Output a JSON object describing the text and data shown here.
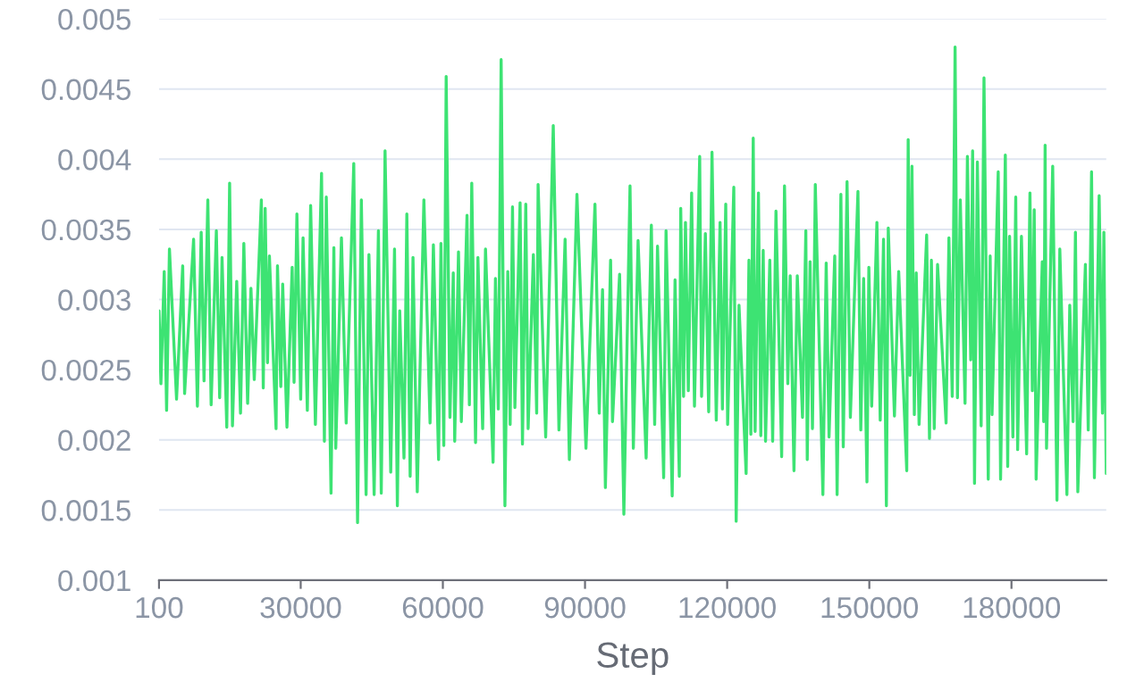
{
  "chart_data": {
    "type": "line",
    "xlabel": "Step",
    "x": [
      100,
      500,
      1200,
      1700,
      2300,
      3800,
      5100,
      5500,
      7400,
      8200,
      9000,
      9600,
      10400,
      11100,
      12200,
      12900,
      13400,
      14400,
      15000,
      15600,
      16500,
      17300,
      18000,
      18800,
      19500,
      20200,
      21700,
      22100,
      22500,
      23000,
      23400,
      24800,
      25100,
      25800,
      26200,
      27100,
      28200,
      28600,
      29200,
      30000,
      30500,
      31400,
      32100,
      33100,
      34400,
      35000,
      35400,
      36400,
      37000,
      37400,
      38600,
      39600,
      41200,
      42000,
      42800,
      43800,
      44400,
      45500,
      46400,
      47000,
      47800,
      49000,
      49800,
      50400,
      50900,
      51800,
      52400,
      53100,
      53700,
      54600,
      56000,
      57300,
      58000,
      59100,
      59600,
      60200,
      60700,
      61500,
      62200,
      62500,
      63300,
      63900,
      65100,
      65600,
      66100,
      66900,
      67400,
      68400,
      69000,
      70600,
      71100,
      71700,
      72300,
      73100,
      73700,
      74200,
      74700,
      75200,
      76300,
      76800,
      77500,
      78000,
      79100,
      79800,
      80100,
      81700,
      83300,
      84500,
      85800,
      86700,
      88300,
      90200,
      92100,
      93000,
      93700,
      94300,
      95400,
      95800,
      97300,
      98200,
      99500,
      100200,
      101200,
      102900,
      104000,
      104700,
      105300,
      106600,
      107100,
      108400,
      109000,
      109900,
      110200,
      110800,
      111200,
      111800,
      112500,
      113100,
      114200,
      114600,
      115400,
      116100,
      116800,
      117700,
      118500,
      119000,
      119700,
      120100,
      121400,
      121900,
      122500,
      124000,
      124600,
      125000,
      125500,
      125900,
      126600,
      127100,
      127600,
      128100,
      129000,
      129600,
      130300,
      131500,
      132100,
      132800,
      133300,
      134100,
      134800,
      135900,
      136600,
      136900,
      137500,
      138000,
      138600,
      140200,
      140900,
      141500,
      142700,
      143200,
      144000,
      144500,
      145300,
      146000,
      147600,
      148200,
      148800,
      149500,
      149900,
      150500,
      151600,
      152300,
      153000,
      153600,
      154000,
      155300,
      156200,
      157900,
      158200,
      158600,
      159000,
      159500,
      159900,
      160500,
      162100,
      162700,
      163100,
      163700,
      164400,
      166200,
      166800,
      167500,
      168100,
      168600,
      169200,
      170200,
      170700,
      171400,
      171800,
      172200,
      172800,
      173600,
      174200,
      175100,
      175500,
      175900,
      177200,
      177700,
      178700,
      179200,
      179600,
      180300,
      180900,
      181300,
      182100,
      183200,
      183900,
      184400,
      184800,
      185200,
      186500,
      186800,
      187100,
      187400,
      188700,
      189600,
      190200,
      191700,
      192300,
      193000,
      193500,
      194000,
      195600,
      196200,
      196900,
      197500,
      198500,
      199200,
      199500,
      200000
    ],
    "series": [
      {
        "color": "#3de373",
        "values": [
          0.00292,
          0.0024,
          0.0032,
          0.00221,
          0.00336,
          0.00229,
          0.00324,
          0.00233,
          0.00343,
          0.00224,
          0.00348,
          0.00242,
          0.00371,
          0.00225,
          0.00349,
          0.0023,
          0.0033,
          0.00209,
          0.00383,
          0.0021,
          0.00313,
          0.00219,
          0.0034,
          0.00226,
          0.00308,
          0.00243,
          0.00371,
          0.00237,
          0.00365,
          0.00255,
          0.00331,
          0.00208,
          0.00324,
          0.00238,
          0.00311,
          0.00209,
          0.00323,
          0.00241,
          0.00361,
          0.00229,
          0.00344,
          0.00221,
          0.00367,
          0.00211,
          0.0039,
          0.00199,
          0.00373,
          0.00162,
          0.00337,
          0.00194,
          0.00344,
          0.00212,
          0.00397,
          0.00141,
          0.00371,
          0.00161,
          0.00332,
          0.00161,
          0.00349,
          0.00162,
          0.00406,
          0.00177,
          0.00336,
          0.00153,
          0.00292,
          0.00187,
          0.00361,
          0.00174,
          0.0033,
          0.00163,
          0.00371,
          0.00212,
          0.00339,
          0.00186,
          0.0034,
          0.00196,
          0.00459,
          0.00216,
          0.00319,
          0.00199,
          0.00334,
          0.00213,
          0.0036,
          0.00225,
          0.00383,
          0.00198,
          0.0033,
          0.00208,
          0.00336,
          0.00184,
          0.00315,
          0.00222,
          0.00471,
          0.00153,
          0.0032,
          0.00211,
          0.00366,
          0.00223,
          0.00369,
          0.00197,
          0.00368,
          0.00208,
          0.00332,
          0.00219,
          0.00382,
          0.00202,
          0.00424,
          0.00207,
          0.00343,
          0.00186,
          0.00375,
          0.00194,
          0.00368,
          0.00219,
          0.00307,
          0.00166,
          0.00328,
          0.00213,
          0.00318,
          0.00147,
          0.00381,
          0.00194,
          0.00342,
          0.00187,
          0.00353,
          0.00211,
          0.00338,
          0.00173,
          0.00349,
          0.0016,
          0.00314,
          0.00174,
          0.00365,
          0.00231,
          0.00355,
          0.00235,
          0.00376,
          0.00224,
          0.00402,
          0.00231,
          0.00347,
          0.0022,
          0.00405,
          0.00214,
          0.00355,
          0.00222,
          0.00368,
          0.00211,
          0.0038,
          0.00142,
          0.00296,
          0.00176,
          0.00328,
          0.00204,
          0.00415,
          0.00206,
          0.00376,
          0.00203,
          0.00335,
          0.00199,
          0.00328,
          0.00199,
          0.00363,
          0.00188,
          0.00381,
          0.0024,
          0.00317,
          0.00178,
          0.00317,
          0.00216,
          0.00349,
          0.00186,
          0.00327,
          0.00208,
          0.00382,
          0.00161,
          0.00326,
          0.00202,
          0.00331,
          0.00161,
          0.00375,
          0.00195,
          0.00384,
          0.00216,
          0.00377,
          0.00207,
          0.00315,
          0.0017,
          0.00323,
          0.00224,
          0.00355,
          0.00214,
          0.00343,
          0.00153,
          0.00351,
          0.00217,
          0.0032,
          0.00178,
          0.00414,
          0.00246,
          0.00395,
          0.00218,
          0.00319,
          0.00211,
          0.00346,
          0.00201,
          0.00328,
          0.00208,
          0.00325,
          0.00212,
          0.00344,
          0.00231,
          0.0048,
          0.0023,
          0.00371,
          0.00226,
          0.00402,
          0.00257,
          0.00406,
          0.00169,
          0.00398,
          0.0021,
          0.00458,
          0.00172,
          0.00331,
          0.00218,
          0.00391,
          0.00172,
          0.00403,
          0.00181,
          0.00345,
          0.00202,
          0.00373,
          0.00193,
          0.00345,
          0.0019,
          0.00376,
          0.00235,
          0.00364,
          0.00172,
          0.00327,
          0.00213,
          0.0041,
          0.00194,
          0.00395,
          0.00157,
          0.00336,
          0.00161,
          0.00296,
          0.00213,
          0.00348,
          0.00163,
          0.00325,
          0.00207,
          0.00391,
          0.00173,
          0.00374,
          0.00219,
          0.00348,
          0.00176
        ]
      }
    ],
    "xlim": [
      100,
      200000
    ],
    "xticks": [
      100,
      30000,
      60000,
      90000,
      120000,
      150000,
      180000
    ],
    "ylim": [
      0.001,
      0.005
    ],
    "yticks": [
      0.001,
      0.0015,
      0.002,
      0.0025,
      0.003,
      0.0035,
      0.004,
      0.0045,
      0.005
    ],
    "grid": "y"
  }
}
